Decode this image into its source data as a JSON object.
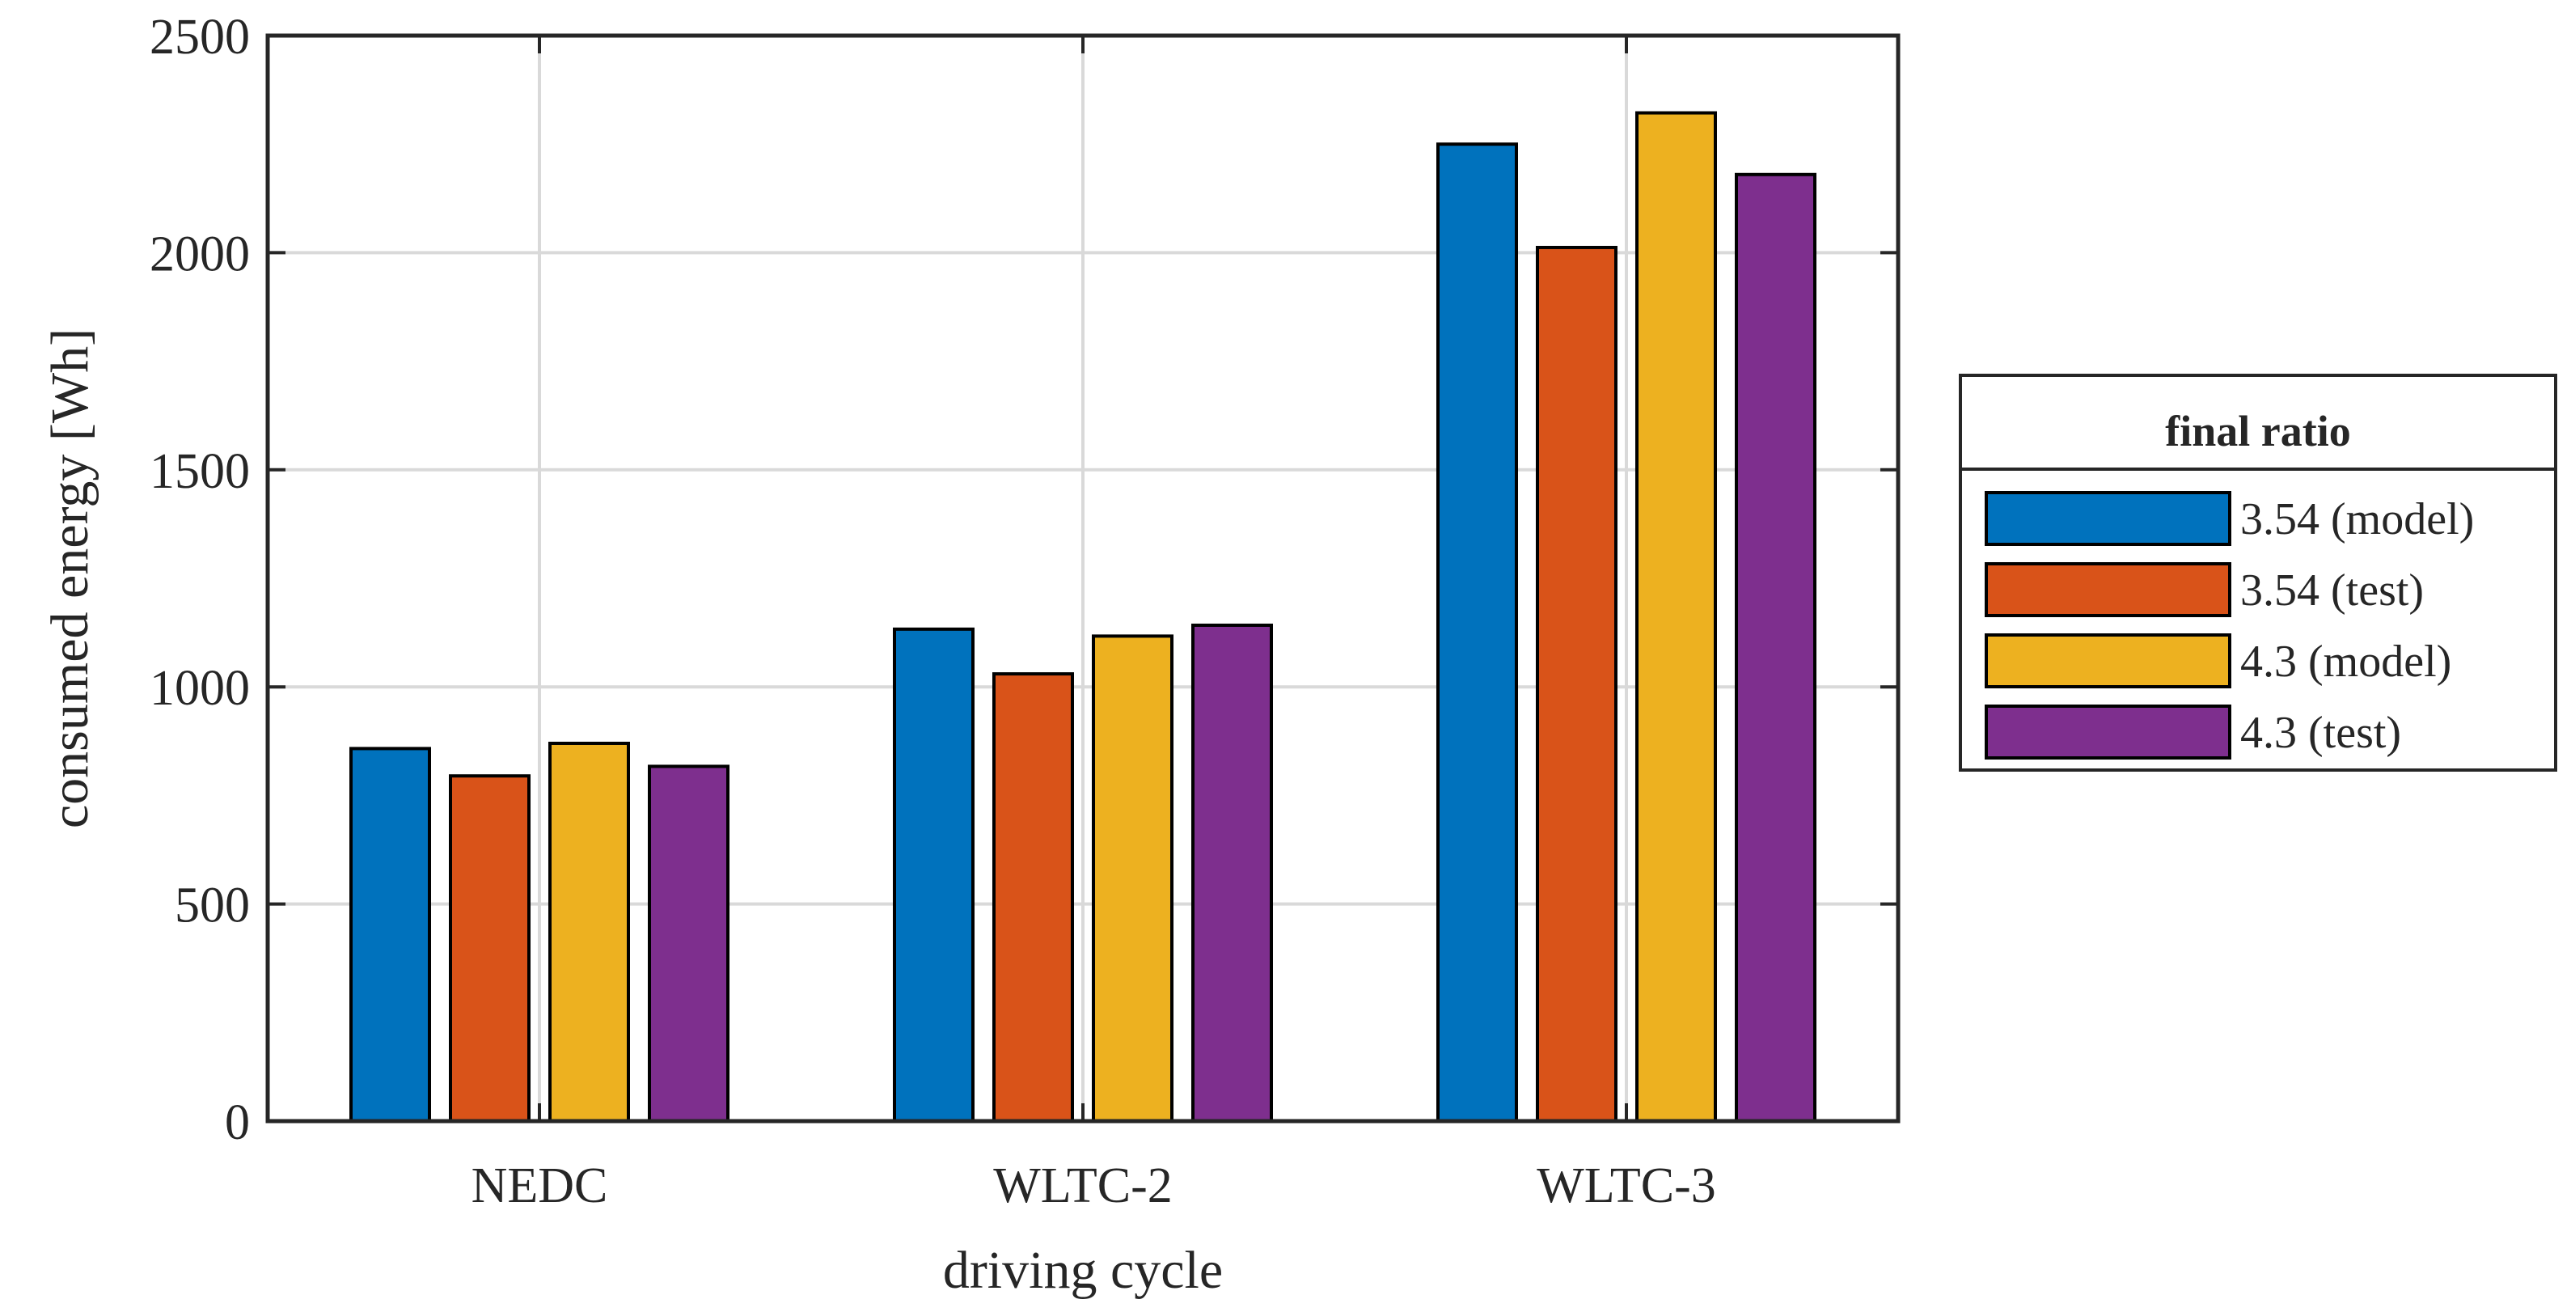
{
  "chart_data": {
    "type": "bar",
    "title": "",
    "xlabel": "driving cycle",
    "ylabel": "consumed energy [Wh]",
    "categories": [
      "NEDC",
      "WLTC-2",
      "WLTC-3"
    ],
    "ylim": [
      0,
      2500
    ],
    "yticks": [
      0,
      500,
      1000,
      1500,
      2000,
      2500
    ],
    "grid": true,
    "legend": {
      "title": "final ratio",
      "placement": "right-outside"
    },
    "series": [
      {
        "name": "3.54 (model)",
        "color": "#0072BD",
        "values": [
          858,
          1133,
          2250
        ]
      },
      {
        "name": "3.54 (test)",
        "color": "#D95319",
        "values": [
          795,
          1030,
          2012
        ]
      },
      {
        "name": "4.3 (model)",
        "color": "#EDB120",
        "values": [
          870,
          1117,
          2322
        ]
      },
      {
        "name": "4.3 (test)",
        "color": "#7E2F8E",
        "values": [
          817,
          1142,
          2180
        ]
      }
    ]
  }
}
